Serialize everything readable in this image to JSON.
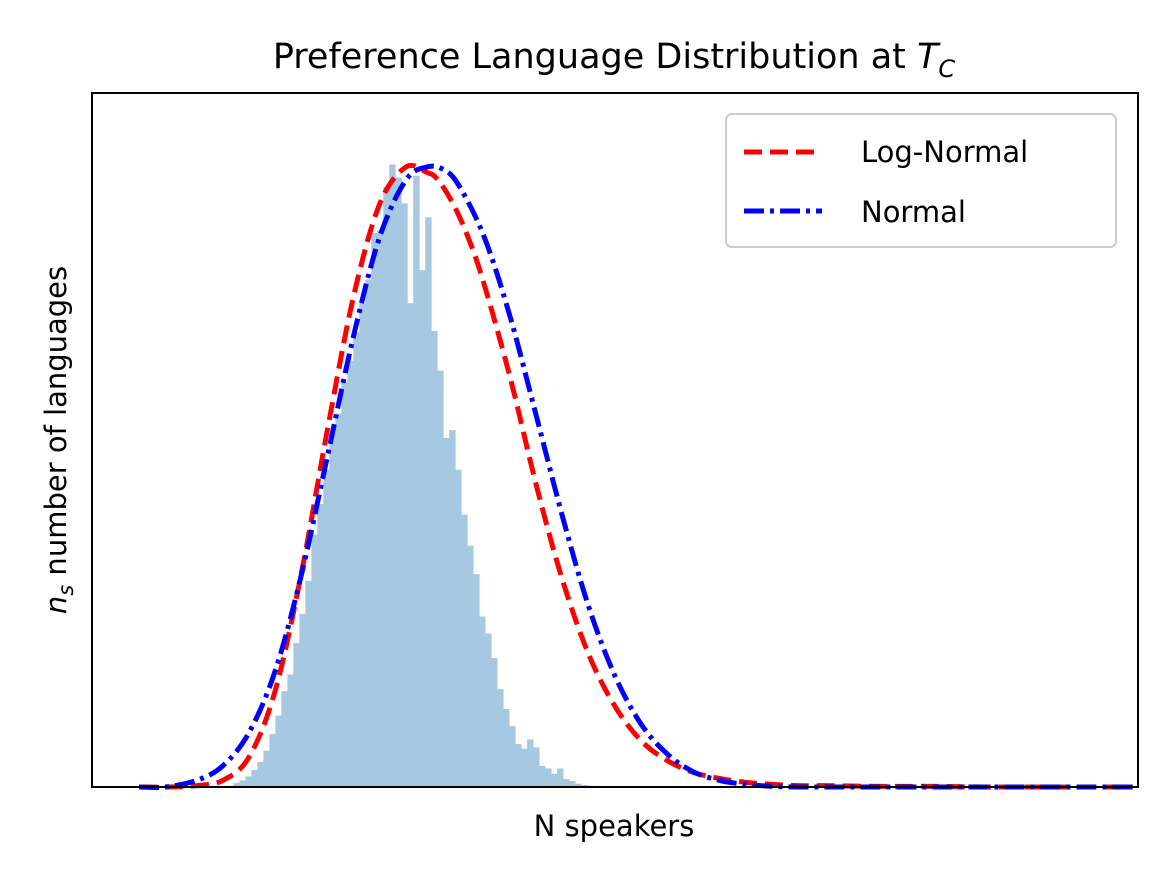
{
  "chart_data": {
    "type": "bar",
    "title_prefix": "Preference Language Distribution at ",
    "title_symbol": "T",
    "title_subscript": "C",
    "xlabel": "N speakers",
    "ylabel_symbol": "n",
    "ylabel_subscript": "s",
    "ylabel_rest": " number of languages",
    "x_ticks": "none",
    "y_ticks": "none",
    "grid": false,
    "legend_placement": "upper right",
    "xlim": [
      0,
      1
    ],
    "ylim": [
      0,
      1.05
    ],
    "histogram": {
      "color": "#a6c8e0",
      "bin_start": 0.055,
      "bin_width": 0.00573,
      "heights": [
        0.0,
        0.0,
        0.0,
        0.0,
        0.0,
        0.0,
        0.0,
        0.0,
        0.0,
        0.0,
        0.0,
        0.0,
        0.0,
        0.002,
        0.006,
        0.01,
        0.016,
        0.026,
        0.038,
        0.055,
        0.08,
        0.108,
        0.145,
        0.17,
        0.218,
        0.262,
        0.312,
        0.382,
        0.428,
        0.48,
        0.535,
        0.565,
        0.612,
        0.645,
        0.688,
        0.732,
        0.768,
        0.838,
        0.842,
        0.908,
        0.942,
        0.922,
        0.883,
        0.732,
        0.925,
        0.782,
        0.862,
        0.69,
        0.63,
        0.528,
        0.54,
        0.48,
        0.412,
        0.365,
        0.322,
        0.258,
        0.232,
        0.195,
        0.148,
        0.118,
        0.092,
        0.065,
        0.058,
        0.072,
        0.06,
        0.032,
        0.028,
        0.02,
        0.028,
        0.012,
        0.009,
        0.005,
        0.003,
        0.002,
        0.001,
        0.0
      ]
    },
    "series": [
      {
        "name": "Log-Normal",
        "color": "#ff0000",
        "style": "dashed",
        "x": [
          0.045,
          0.07,
          0.1,
          0.125,
          0.15,
          0.175,
          0.2,
          0.225,
          0.25,
          0.275,
          0.3,
          0.32,
          0.33,
          0.345,
          0.36,
          0.375,
          0.4,
          0.425,
          0.45,
          0.475,
          0.5,
          0.525,
          0.55,
          0.575,
          0.6,
          0.625,
          0.65,
          0.675,
          0.7,
          0.75,
          0.8,
          0.85,
          0.9,
          0.95,
          0.995
        ],
        "values": [
          0.0,
          0.0,
          0.002,
          0.01,
          0.045,
          0.145,
          0.322,
          0.54,
          0.742,
          0.882,
          0.938,
          0.93,
          0.92,
          0.883,
          0.83,
          0.76,
          0.618,
          0.455,
          0.312,
          0.2,
          0.122,
          0.07,
          0.04,
          0.022,
          0.013,
          0.007,
          0.004,
          0.002,
          0.002,
          0.001,
          0.001,
          0.0,
          0.0,
          0.0,
          0.0
        ]
      },
      {
        "name": "Normal",
        "color": "#0000ff",
        "style": "dashdot",
        "x": [
          0.045,
          0.07,
          0.1,
          0.125,
          0.15,
          0.175,
          0.2,
          0.225,
          0.25,
          0.275,
          0.3,
          0.32,
          0.335,
          0.35,
          0.375,
          0.4,
          0.425,
          0.45,
          0.475,
          0.5,
          0.525,
          0.55,
          0.575,
          0.6,
          0.625,
          0.65,
          0.675,
          0.7,
          0.75,
          0.8,
          0.85,
          0.9,
          0.95,
          0.995
        ],
        "values": [
          0.0,
          0.0,
          0.01,
          0.032,
          0.082,
          0.175,
          0.32,
          0.5,
          0.682,
          0.832,
          0.918,
          0.938,
          0.935,
          0.912,
          0.832,
          0.71,
          0.56,
          0.408,
          0.272,
          0.168,
          0.095,
          0.05,
          0.023,
          0.01,
          0.004,
          0.001,
          0.0,
          0.0,
          0.0,
          0.0,
          0.0,
          0.0,
          0.0,
          0.0
        ]
      }
    ]
  }
}
